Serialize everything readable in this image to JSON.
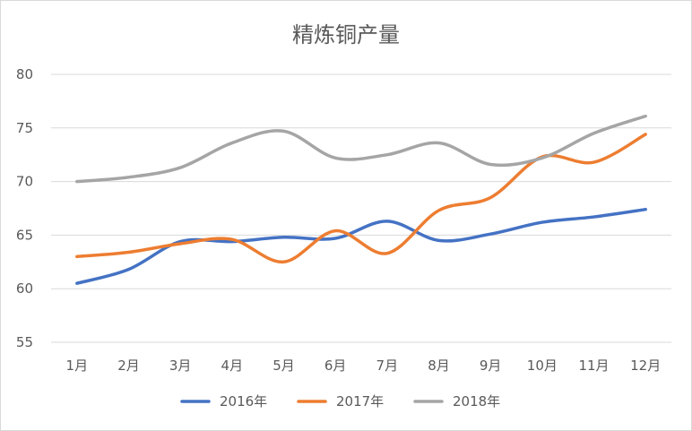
{
  "chart_data": {
    "type": "line",
    "title": "精炼铜产量",
    "xlabel": "",
    "ylabel": "",
    "categories": [
      "1月",
      "2月",
      "3月",
      "4月",
      "5月",
      "6月",
      "7月",
      "8月",
      "9月",
      "10月",
      "11月",
      "12月"
    ],
    "ylim": [
      55,
      80
    ],
    "yticks": [
      55,
      60,
      65,
      70,
      75,
      80
    ],
    "grid": true,
    "legend_position": "bottom",
    "smooth": true,
    "series": [
      {
        "name": "2016年",
        "color": "#4472c4",
        "values": [
          60.5,
          61.8,
          64.4,
          64.4,
          64.8,
          64.7,
          66.3,
          64.5,
          65.1,
          66.2,
          66.7,
          67.4
        ]
      },
      {
        "name": "2017年",
        "color": "#ed7d31",
        "values": [
          63.0,
          63.4,
          64.2,
          64.6,
          62.5,
          65.4,
          63.3,
          67.3,
          68.5,
          72.3,
          71.8,
          74.4
        ]
      },
      {
        "name": "2018年",
        "color": "#a5a5a5",
        "values": [
          70.0,
          70.4,
          71.3,
          73.6,
          74.7,
          72.2,
          72.5,
          73.6,
          71.6,
          72.2,
          74.5,
          76.1
        ]
      }
    ]
  }
}
